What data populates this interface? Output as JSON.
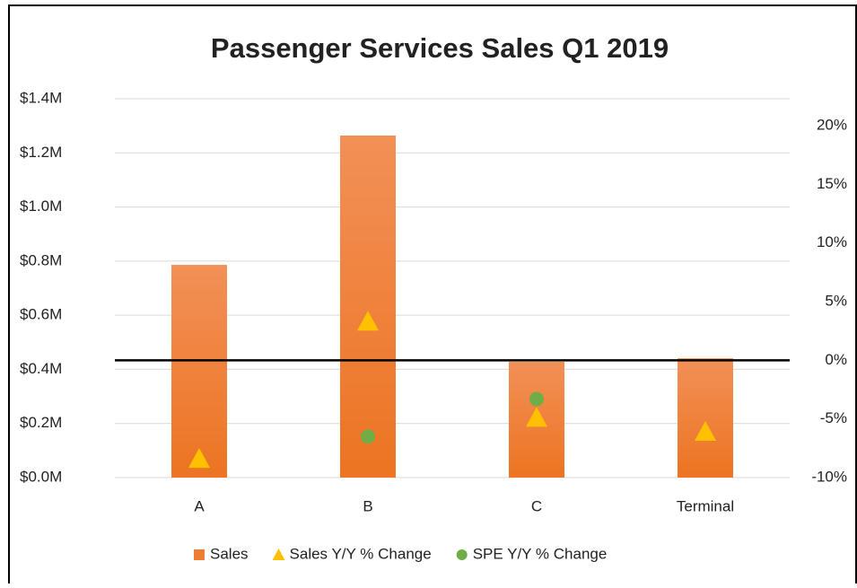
{
  "chart_data": {
    "type": "bar",
    "title": "Passenger Services Sales Q1 2019",
    "categories": [
      "A",
      "B",
      "C",
      "Terminal"
    ],
    "series": [
      {
        "name": "Sales",
        "color": "#ed7d31",
        "marker": "bar",
        "values": [
          786000,
          1264000,
          428000,
          441000
        ]
      },
      {
        "name": "Sales Y/Y % Change",
        "color": "#ffc000",
        "marker": "triangle",
        "axis": "y2",
        "values": [
          -8.4,
          3.3,
          -4.9,
          -6.1
        ]
      },
      {
        "name": "SPE Y/Y % Change",
        "color": "#70ad47",
        "marker": "circle",
        "axis": "y2",
        "values": [
          null,
          -6.5,
          -3.3,
          null
        ]
      }
    ],
    "ylim": [
      0,
      1400000
    ],
    "yticks": [
      {
        "value": 0,
        "label": "$0.0M"
      },
      {
        "value": 200000,
        "label": "$0.2M"
      },
      {
        "value": 400000,
        "label": "$0.4M"
      },
      {
        "value": 600000,
        "label": "$0.6M"
      },
      {
        "value": 800000,
        "label": "$0.8M"
      },
      {
        "value": 1000000,
        "label": "$1.0M"
      },
      {
        "value": 1200000,
        "label": "$1.2M"
      },
      {
        "value": 1400000,
        "label": "$1.4M"
      }
    ],
    "y2lim": [
      -10,
      22.3
    ],
    "y2ticks": [
      {
        "value": -10,
        "label": "-10%"
      },
      {
        "value": -5,
        "label": "-5%"
      },
      {
        "value": 0,
        "label": "0%"
      },
      {
        "value": 5,
        "label": "5%"
      },
      {
        "value": 10,
        "label": "10%"
      },
      {
        "value": 15,
        "label": "15%"
      },
      {
        "value": 20,
        "label": "20%"
      }
    ],
    "grid": true,
    "legend": "bottom"
  }
}
